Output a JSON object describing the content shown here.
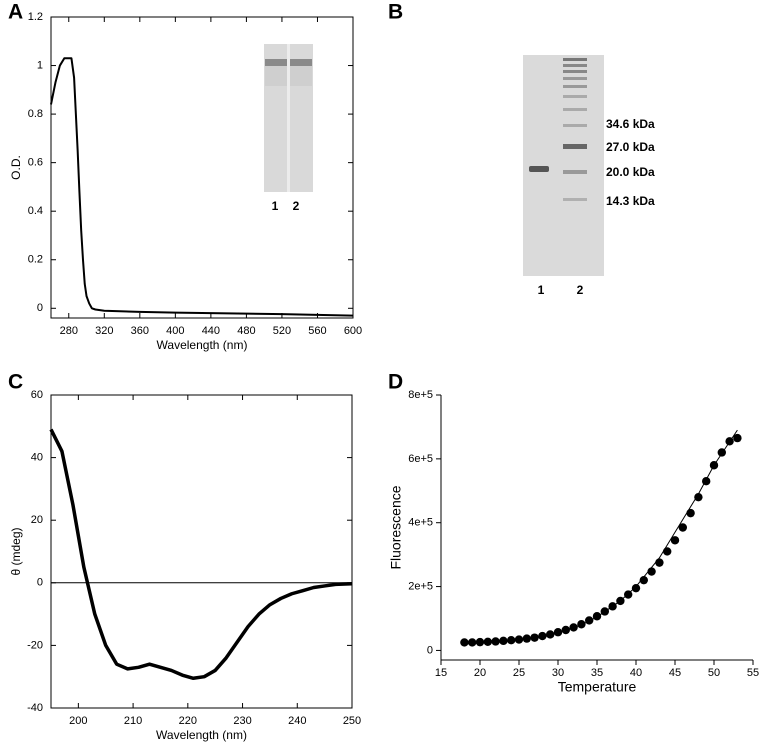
{
  "chart_data": [
    {
      "type": "line",
      "panel": "A",
      "xlabel": "Wavelength (nm)",
      "ylabel": "O.D.",
      "xlim": [
        260,
        600
      ],
      "ylim": [
        -0.04,
        1.2
      ],
      "xticks": [
        280,
        320,
        360,
        400,
        440,
        480,
        520,
        560,
        600
      ],
      "yticks": [
        0,
        0.2,
        0.4,
        0.6,
        0.8,
        1,
        1.2
      ],
      "box": true,
      "x": [
        260,
        265,
        270,
        275,
        280,
        283,
        286,
        288,
        290,
        292,
        294,
        296,
        298,
        300,
        303,
        306,
        310,
        320,
        360,
        400,
        440,
        480,
        520,
        560,
        600
      ],
      "series": [
        {
          "color": "#000000",
          "values": [
            0.84,
            0.93,
            1.0,
            1.03,
            1.03,
            1.03,
            0.95,
            0.8,
            0.65,
            0.48,
            0.32,
            0.2,
            0.1,
            0.05,
            0.02,
            0.0,
            -0.005,
            -0.01,
            -0.015,
            -0.018,
            -0.02,
            -0.022,
            -0.024,
            -0.027,
            -0.03
          ]
        }
      ],
      "inset_lanes": [
        "1",
        "2"
      ]
    },
    {
      "type": "line",
      "panel": "C",
      "xlabel": "Wavelength (nm)",
      "ylabel": "θ (mdeg)",
      "xlim": [
        195,
        250
      ],
      "ylim": [
        -40,
        60
      ],
      "xticks": [
        200,
        210,
        220,
        230,
        240,
        250
      ],
      "yticks": [
        -40,
        -20,
        0,
        20,
        40,
        60
      ],
      "box": true,
      "zero_line": true,
      "x": [
        195,
        197,
        199,
        201,
        203,
        205,
        207,
        209,
        211,
        213,
        215,
        217,
        219,
        221,
        223,
        225,
        227,
        229,
        231,
        233,
        235,
        237,
        239,
        241,
        243,
        245,
        247,
        250
      ],
      "series": [
        {
          "color": "#000000",
          "values": [
            49,
            42,
            25,
            5,
            -10,
            -20,
            -26,
            -27.5,
            -27,
            -26,
            -27,
            -28,
            -29.5,
            -30.5,
            -30,
            -28,
            -24,
            -19,
            -14,
            -10,
            -7,
            -5,
            -3.5,
            -2.5,
            -1.5,
            -1,
            -0.5,
            -0.3
          ]
        }
      ]
    },
    {
      "type": "scatter",
      "panel": "D",
      "xlabel": "Temperature",
      "ylabel": "Fluorescence",
      "xlim": [
        15,
        55
      ],
      "ylim": [
        -30000,
        800000
      ],
      "xticks": [
        15,
        20,
        25,
        30,
        35,
        40,
        45,
        50,
        55
      ],
      "yticks": [
        0,
        {
          "value": 200000,
          "label": "2e+5"
        },
        {
          "value": 400000,
          "label": "4e+5"
        },
        {
          "value": 600000,
          "label": "6e+5"
        },
        {
          "value": 800000,
          "label": "8e+5"
        }
      ],
      "box": false,
      "series": [
        {
          "style": "points",
          "color": "#000000",
          "x": [
            18,
            19,
            20,
            21,
            22,
            23,
            24,
            25,
            26,
            27,
            28,
            29,
            30,
            31,
            32,
            33,
            34,
            35,
            36,
            37,
            38,
            39,
            40,
            41,
            42,
            43,
            44,
            45,
            46,
            47,
            48,
            49,
            50,
            51,
            52,
            53
          ],
          "values": [
            25000,
            25000,
            26000,
            27000,
            28000,
            30000,
            32000,
            34000,
            37000,
            40000,
            45000,
            50000,
            57000,
            64000,
            72000,
            82000,
            94000,
            107000,
            122000,
            138000,
            155000,
            175000,
            195000,
            220000,
            247000,
            275000,
            310000,
            345000,
            385000,
            430000,
            480000,
            530000,
            580000,
            620000,
            655000,
            665000
          ]
        },
        {
          "style": "line",
          "color": "#000000",
          "x": [
            18,
            22,
            25,
            28,
            30,
            33,
            35,
            38,
            40,
            43,
            45,
            48,
            50,
            53
          ],
          "values": [
            20000,
            26000,
            32000,
            43000,
            55000,
            80000,
            105000,
            155000,
            200000,
            290000,
            370000,
            490000,
            580000,
            690000
          ]
        }
      ]
    }
  ],
  "gel": {
    "panel": "B",
    "markers": [
      "34.6 kDa",
      "27.0 kDa",
      "20.0 kDa",
      "14.3 kDa"
    ],
    "lanes": [
      "1",
      "2"
    ]
  }
}
